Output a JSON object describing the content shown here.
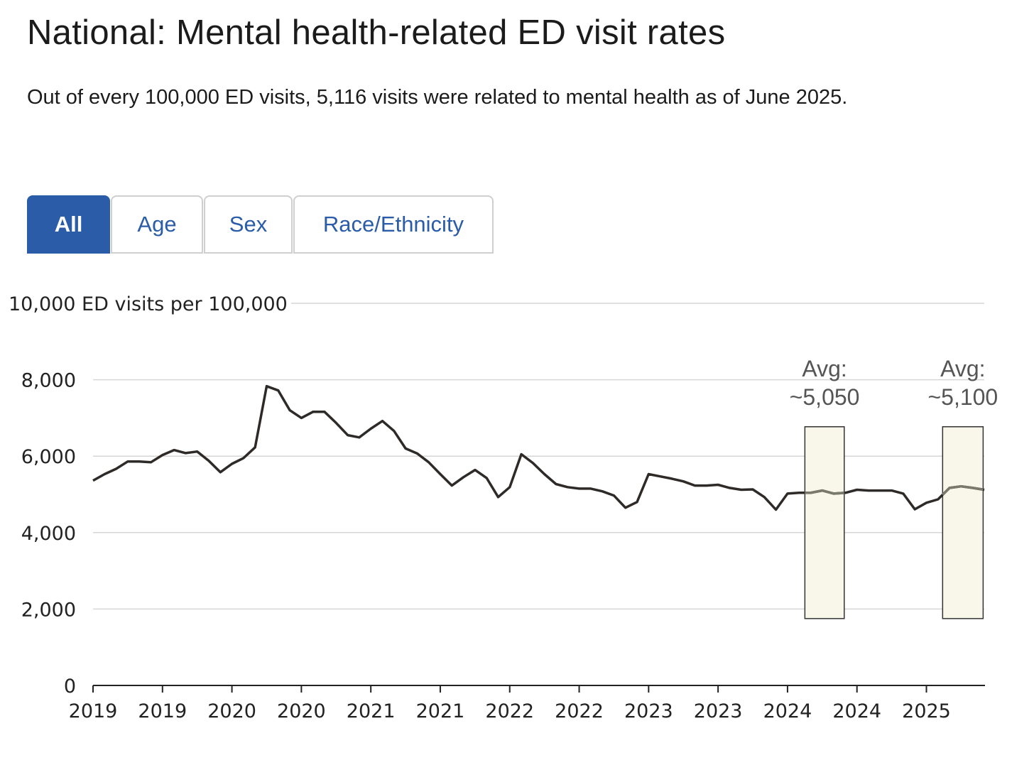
{
  "header": {
    "title": "National: Mental health-related ED visit rates",
    "subtitle": "Out of every 100,000 ED visits, 5,116 visits were related to mental health as of June 2025."
  },
  "tabs": [
    {
      "label": "All",
      "active": true
    },
    {
      "label": "Age",
      "active": false
    },
    {
      "label": "Sex",
      "active": false
    },
    {
      "label": "Race/Ethnicity",
      "active": false
    }
  ],
  "colors": {
    "accent": "#2a5ca8",
    "line": "#2e2a28",
    "highlight_line": "#7a7a6c",
    "box_fill": "#f9f7ea"
  },
  "chart_data": {
    "type": "line",
    "ylabel": "10,000 ED visits per 100,000",
    "ylim": [
      0,
      10000
    ],
    "yticks": [
      0,
      2000,
      4000,
      6000,
      8000
    ],
    "ytick_labels": [
      "0",
      "2,000",
      "4,000",
      "6,000",
      "8,000"
    ],
    "grid": true,
    "xtick_labels": [
      "2019",
      "2019",
      "2020",
      "2020",
      "2021",
      "2021",
      "2022",
      "2022",
      "2023",
      "2023",
      "2024",
      "2024",
      "2025"
    ],
    "xtick_step_months": 6,
    "x_unit": "month index",
    "values": [
      5360,
      5530,
      5670,
      5860,
      5860,
      5840,
      6030,
      6160,
      6080,
      6120,
      5880,
      5580,
      5800,
      5950,
      6230,
      7830,
      7720,
      7200,
      7000,
      7160,
      7160,
      6870,
      6550,
      6490,
      6720,
      6920,
      6660,
      6200,
      6070,
      5840,
      5530,
      5230,
      5450,
      5640,
      5430,
      4930,
      5190,
      6050,
      5820,
      5530,
      5270,
      5190,
      5150,
      5150,
      5080,
      4970,
      4650,
      4800,
      5530,
      5470,
      5410,
      5340,
      5230,
      5230,
      5250,
      5170,
      5120,
      5130,
      4930,
      4600,
      5020,
      5040,
      5040,
      5100,
      5020,
      5040,
      5120,
      5100,
      5100,
      5100,
      5020,
      4610,
      4780,
      4870,
      5170,
      5210,
      5170,
      5120
    ],
    "annotations": [
      {
        "line1": "Avg:",
        "line2": "~5,050",
        "x_range": [
          61.5,
          64.9
        ],
        "y_range": [
          1750,
          6770
        ]
      },
      {
        "line1": "Avg:",
        "line2": "~5,100",
        "x_range": [
          73.4,
          76.9
        ],
        "y_range": [
          1750,
          6770
        ]
      }
    ]
  }
}
